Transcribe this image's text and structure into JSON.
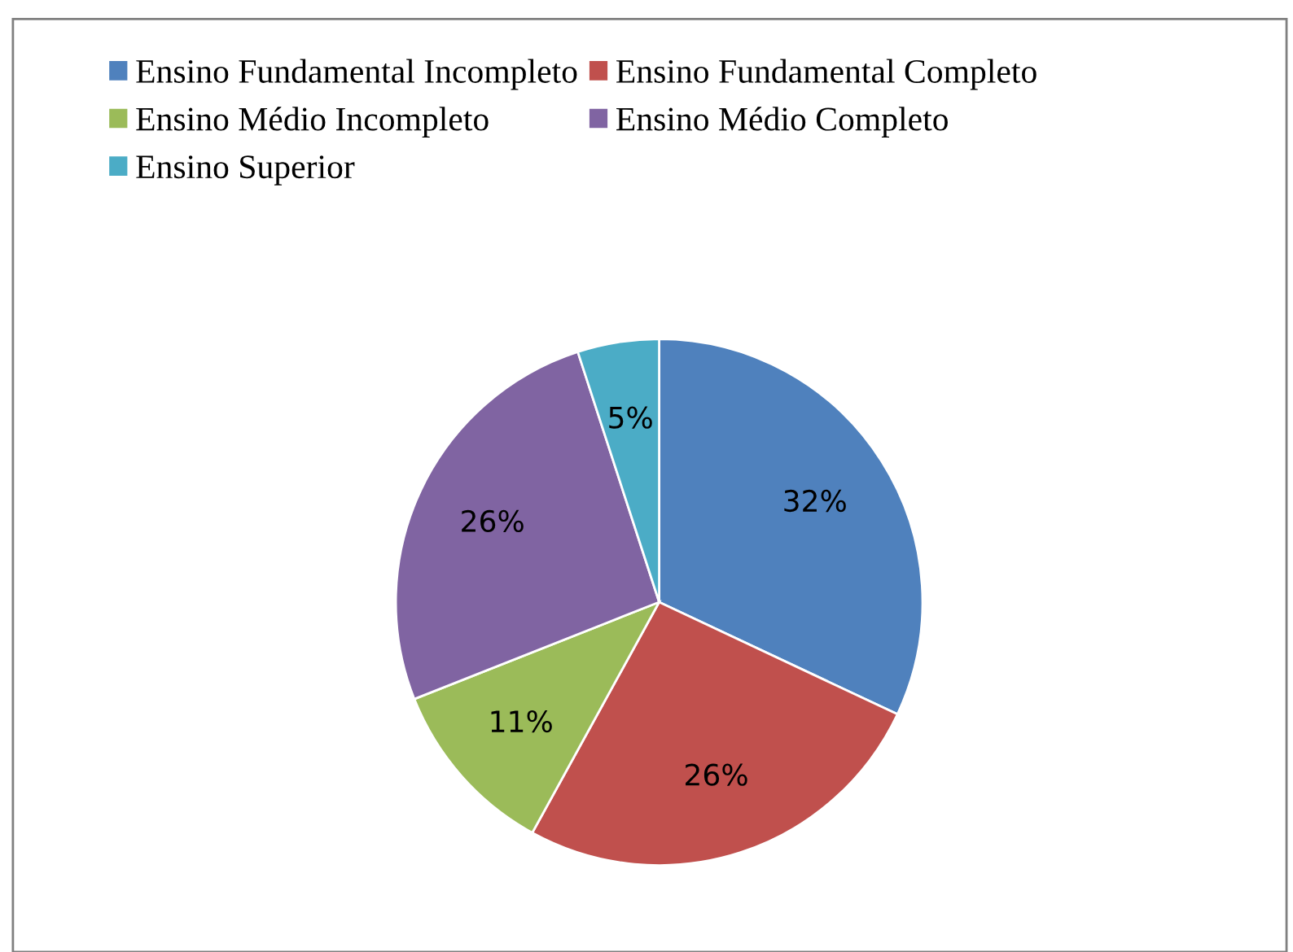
{
  "chart_data": {
    "type": "pie",
    "categories": [
      "Ensino Fundamental Incompleto",
      "Ensino Fundamental Completo",
      "Ensino Médio Incompleto",
      "Ensino Médio Completo",
      "Ensino Superior"
    ],
    "values": [
      32,
      26,
      11,
      26,
      5
    ],
    "colors": [
      "#4f81bd",
      "#c0504d",
      "#9bbb59",
      "#8064a2",
      "#4bacc6"
    ],
    "value_labels": [
      "32%",
      "26%",
      "11%",
      "26%",
      "5%"
    ],
    "legend": "top"
  }
}
